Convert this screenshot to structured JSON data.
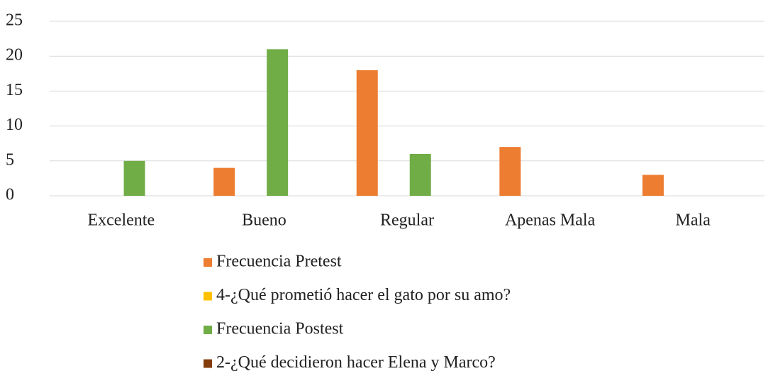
{
  "chart_data": {
    "type": "bar",
    "categories": [
      "Excelente",
      "Bueno",
      "Regular",
      "Apenas Mala",
      "Mala"
    ],
    "series": [
      {
        "name": "Frecuencia Pretest",
        "color": "#ed7d31",
        "values": [
          null,
          4,
          18,
          7,
          3
        ]
      },
      {
        "name": "4-¿Qué prometió hacer el gato por su amo?",
        "color": "#ffc000",
        "values": [
          null,
          null,
          null,
          null,
          null
        ]
      },
      {
        "name": "Frecuencia Postest",
        "color": "#70ad47",
        "values": [
          5,
          21,
          6,
          null,
          null
        ]
      },
      {
        "name": "2-¿Qué decidieron hacer Elena y Marco?",
        "color": "#843c0c",
        "values": [
          null,
          null,
          null,
          null,
          null
        ]
      }
    ],
    "ylim": [
      0,
      25
    ],
    "yticks": [
      0,
      5,
      10,
      15,
      20,
      25
    ],
    "grid": true,
    "legend": "bottom"
  }
}
